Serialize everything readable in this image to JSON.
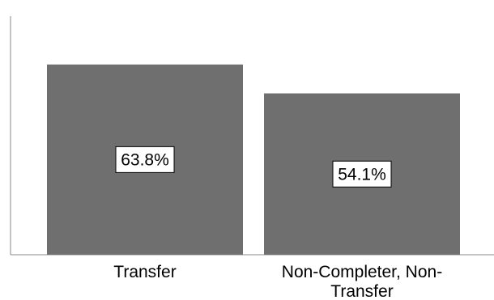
{
  "chart_data": {
    "type": "bar",
    "categories": [
      "Transfer",
      "Non-Completer, Non-Transfer"
    ],
    "category_lines": [
      [
        "Transfer"
      ],
      [
        "Non-Completer, Non-",
        "Transfer"
      ]
    ],
    "values": [
      63.8,
      54.1
    ],
    "data_labels": [
      "63.8%",
      "54.1%"
    ],
    "title": "",
    "xlabel": "",
    "ylabel": "",
    "ylim": [
      0,
      80
    ],
    "grid": false,
    "legend": "none",
    "colors": {
      "bar": "#6f6f6f",
      "axis": "#888888",
      "label_box": "#ffffff",
      "label_border": "#000000"
    }
  }
}
